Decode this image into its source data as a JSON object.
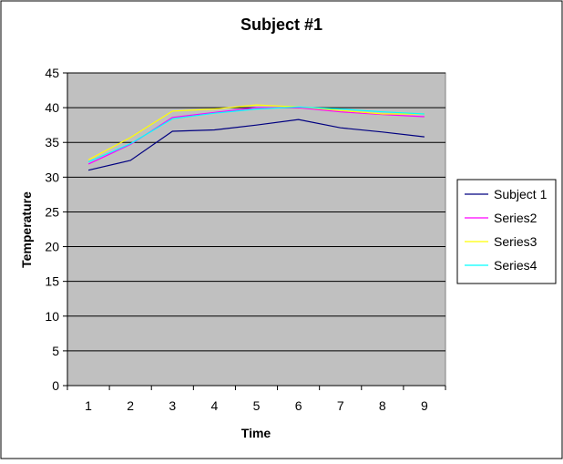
{
  "chart_data": {
    "type": "line",
    "title": "Subject #1",
    "xlabel": "Time",
    "ylabel": "Temperature",
    "x": [
      1,
      2,
      3,
      4,
      5,
      6,
      7,
      8,
      9
    ],
    "ylim": [
      0,
      45
    ],
    "yticks": [
      0,
      5,
      10,
      15,
      20,
      25,
      30,
      35,
      40,
      45
    ],
    "grid": true,
    "legend_position": "right",
    "plot_background": "#c0c0c0",
    "series": [
      {
        "name": "Subject 1",
        "color": "#000080",
        "values": [
          31.0,
          32.4,
          36.6,
          36.8,
          37.5,
          38.3,
          37.1,
          36.5,
          35.8
        ]
      },
      {
        "name": "Series2",
        "color": "#ff00ff",
        "values": [
          31.9,
          34.7,
          38.6,
          39.3,
          40.0,
          40.0,
          39.4,
          39.0,
          38.7
        ]
      },
      {
        "name": "Series3",
        "color": "#ffff00",
        "values": [
          32.5,
          35.7,
          39.5,
          39.8,
          40.4,
          40.1,
          39.6,
          39.1,
          39.1
        ]
      },
      {
        "name": "Series4",
        "color": "#00ffff",
        "values": [
          32.2,
          34.8,
          38.4,
          39.2,
          39.8,
          40.1,
          39.8,
          39.4,
          39.1
        ]
      }
    ]
  }
}
